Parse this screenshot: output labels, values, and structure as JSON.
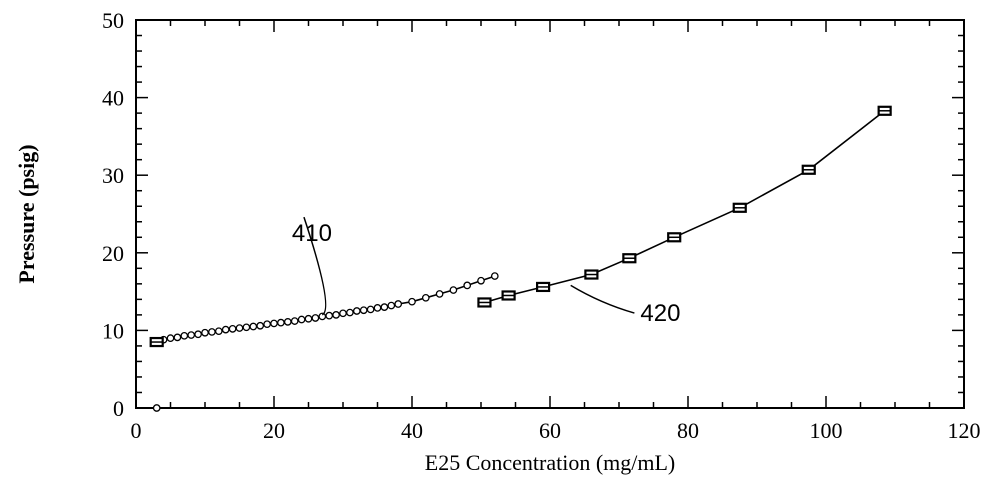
{
  "chart_data": {
    "type": "line",
    "xlabel": "E25 Concentration (mg/mL)",
    "ylabel": "Pressure (psig)",
    "xlim": [
      0,
      120
    ],
    "ylim": [
      0,
      50
    ],
    "xticks": [
      0,
      20,
      40,
      60,
      80,
      100,
      120
    ],
    "yticks": [
      0,
      10,
      20,
      30,
      40,
      50
    ],
    "grid": false,
    "series": [
      {
        "marker": "circle",
        "x": [
          3,
          4,
          5,
          6,
          7,
          8,
          9,
          10,
          11,
          12,
          13,
          14,
          15,
          16,
          17,
          18,
          19,
          20,
          21,
          22,
          23,
          24,
          25,
          26,
          27,
          28,
          29,
          30,
          31,
          32,
          33,
          34,
          35,
          36,
          37,
          38,
          40,
          42,
          44,
          46,
          48,
          50,
          52
        ],
        "y": [
          8.6,
          8.8,
          9.0,
          9.1,
          9.3,
          9.4,
          9.5,
          9.7,
          9.8,
          9.9,
          10.1,
          10.2,
          10.3,
          10.4,
          10.5,
          10.6,
          10.8,
          10.9,
          11.0,
          11.1,
          11.2,
          11.4,
          11.5,
          11.6,
          11.8,
          11.9,
          12.0,
          12.2,
          12.3,
          12.5,
          12.6,
          12.7,
          12.9,
          13.0,
          13.2,
          13.4,
          13.7,
          14.2,
          14.7,
          15.2,
          15.8,
          16.4,
          17.0
        ]
      },
      {
        "marker": "square",
        "x": [
          50.5,
          54,
          59,
          66,
          71.5,
          78,
          87.5,
          97.5,
          108.5
        ],
        "y": [
          13.6,
          14.5,
          15.6,
          17.2,
          19.3,
          22.0,
          25.8,
          30.7,
          38.3
        ]
      }
    ],
    "extra_points": [
      {
        "marker": "square",
        "x": 3,
        "y": 8.5
      },
      {
        "marker": "circle",
        "x": 3,
        "y": 0
      }
    ],
    "annotations": [
      {
        "text": "410",
        "x": 25.5,
        "y": 21.5,
        "points_to": [
          27,
          12.0
        ]
      },
      {
        "text": "420",
        "x": 76,
        "y": 11.2,
        "points_to": [
          63,
          15.8
        ]
      }
    ]
  }
}
